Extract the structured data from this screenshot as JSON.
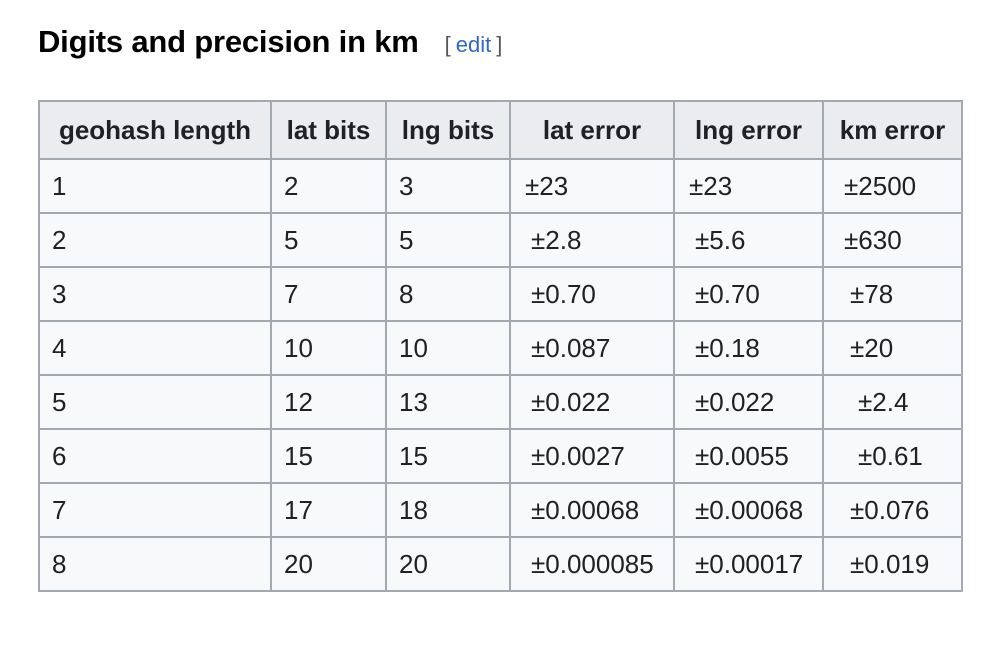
{
  "section": {
    "title": "Digits and precision in km",
    "edit_open": "[",
    "edit_label": "edit",
    "edit_close": "]"
  },
  "table": {
    "headers": [
      "geohash length",
      "lat bits",
      "lng bits",
      "lat error",
      "lng error",
      "km error"
    ],
    "rows": [
      [
        "1",
        "2",
        "3",
        "±23",
        "±23",
        "±2500"
      ],
      [
        "2",
        "5",
        "5",
        "±2.8",
        "±5.6",
        "±630"
      ],
      [
        "3",
        "7",
        "8",
        "±0.70",
        "±0.70",
        "±78"
      ],
      [
        "4",
        "10",
        "10",
        "±0.087",
        "±0.18",
        "±20"
      ],
      [
        "5",
        "12",
        "13",
        "±0.022",
        "±0.022",
        "±2.4"
      ],
      [
        "6",
        "15",
        "15",
        "±0.0027",
        "±0.0055",
        "±0.61"
      ],
      [
        "7",
        "17",
        "18",
        "±0.00068",
        "±0.00068",
        "±0.076"
      ],
      [
        "8",
        "20",
        "20",
        "±0.000085",
        "±0.00017",
        "±0.019"
      ]
    ]
  },
  "colors": {
    "link": "#3366cc",
    "header_bg": "#eaecf0",
    "cell_bg": "#f8f9fa",
    "border": "#a2a9b1"
  }
}
